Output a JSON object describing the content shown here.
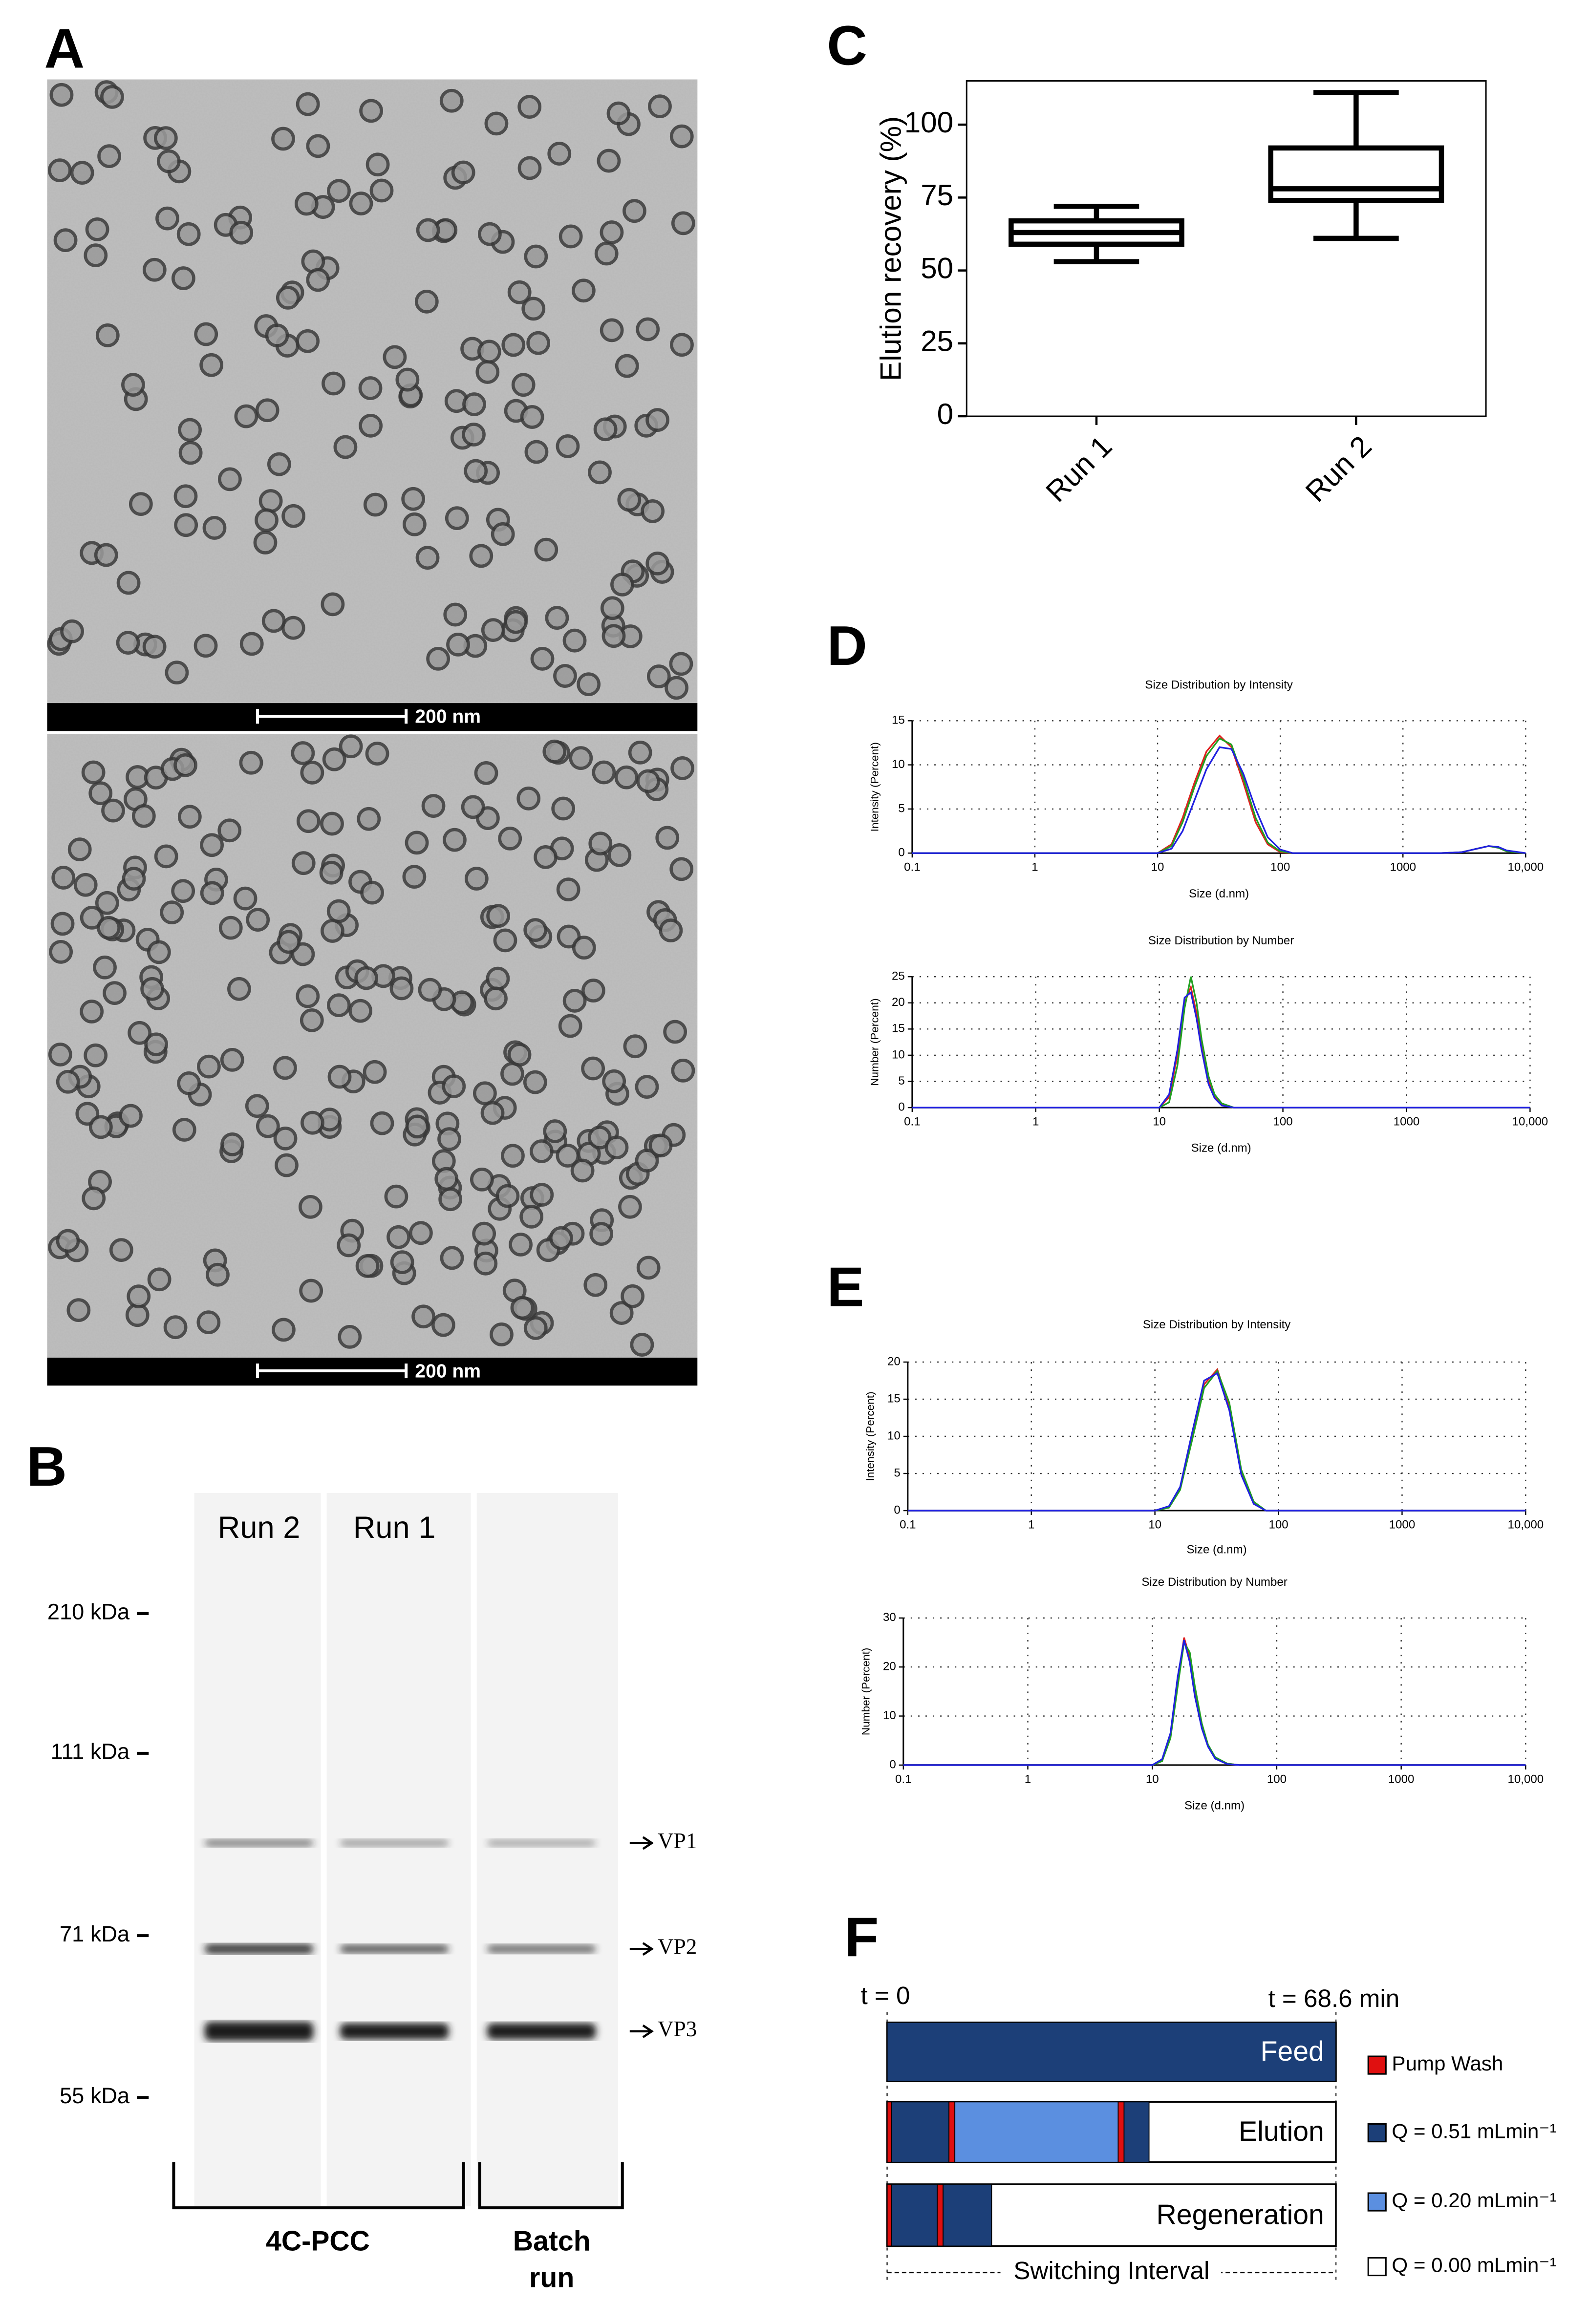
{
  "panel_labels": [
    "A",
    "B",
    "C",
    "D",
    "E",
    "F"
  ],
  "micrographs": [
    {
      "scale_bar": "200 nm"
    },
    {
      "scale_bar": "200 nm"
    }
  ],
  "gel": {
    "lanes": [
      "Run 2",
      "Run 1"
    ],
    "markers": [
      "210 kDa",
      "111 kDa",
      "71 kDa",
      "55 kDa"
    ],
    "bands": [
      "VP1",
      "VP2",
      "VP3"
    ],
    "groups": [
      "4C-PCC",
      "Batch run"
    ]
  },
  "chart_data": [
    {
      "type": "box",
      "ylabel": "Elution recovery (%)",
      "categories": [
        "Run 1",
        "Run 2"
      ],
      "boxes": [
        {
          "min": 53,
          "q1": 59,
          "median": 63,
          "q3": 67,
          "max": 72
        },
        {
          "min": 61,
          "q1": 74,
          "median": 78,
          "q3": 92,
          "max": 111
        }
      ],
      "ylim": [
        0,
        115
      ],
      "yticks": [
        0,
        25,
        50,
        75,
        100
      ],
      "color": "#000000"
    },
    {
      "type": "line",
      "title": "Size Distribution by Intensity",
      "xlabel": "Size (d.nm)",
      "ylabel": "Intensity (Percent)",
      "log_x": true,
      "grid": true,
      "xlim": [
        0.1,
        10000
      ],
      "xticks": [
        0.1,
        1,
        10,
        100,
        1000,
        {
          "value": 10000,
          "label": "10,000"
        }
      ],
      "ylim": [
        0,
        15
      ],
      "yticks": [
        0,
        5,
        10,
        15
      ],
      "x": [
        0.1,
        10,
        13,
        16,
        20,
        25,
        32,
        40,
        50,
        63,
        79,
        100,
        126,
        2000,
        3000,
        4000,
        5000,
        6000,
        7000,
        10000
      ],
      "series": [
        {
          "color": "#e02020",
          "values": [
            0,
            0,
            1,
            4,
            8,
            11.5,
            13.3,
            12,
            8,
            3.5,
            1,
            0.1,
            0,
            0,
            0.1,
            0.5,
            0.8,
            0.6,
            0.2,
            0
          ]
        },
        {
          "color": "#20a020",
          "values": [
            0,
            0,
            0.8,
            3.5,
            7.5,
            11,
            13,
            12.3,
            8.5,
            4,
            1.2,
            0.2,
            0,
            0,
            0.1,
            0.5,
            0.8,
            0.6,
            0.2,
            0
          ]
        },
        {
          "color": "#2020e0",
          "values": [
            0,
            0,
            0.5,
            2.5,
            6,
            9.5,
            12,
            11.8,
            9,
            5,
            1.8,
            0.4,
            0,
            0,
            0.1,
            0.5,
            0.8,
            0.7,
            0.3,
            0
          ]
        }
      ]
    },
    {
      "type": "line",
      "title": "Size Distribution by Number",
      "xlabel": "Size (d.nm)",
      "ylabel": "Number (Percent)",
      "log_x": true,
      "grid": true,
      "xlim": [
        0.1,
        10000
      ],
      "xticks": [
        0.1,
        1,
        10,
        100,
        1000,
        {
          "value": 10000,
          "label": "10,000"
        }
      ],
      "ylim": [
        0,
        25
      ],
      "yticks": [
        0,
        5,
        10,
        15,
        20,
        25
      ],
      "x": [
        0.1,
        10,
        12,
        14,
        16,
        18,
        20,
        22,
        25,
        28,
        32,
        40,
        50,
        10000
      ],
      "series": [
        {
          "color": "#e02020",
          "values": [
            0,
            0,
            2,
            10,
            20,
            23,
            18,
            12,
            5,
            2,
            0.5,
            0,
            0,
            0
          ]
        },
        {
          "color": "#20a020",
          "values": [
            0,
            0,
            1,
            8,
            19,
            25,
            20,
            13,
            6,
            2.5,
            0.8,
            0,
            0,
            0
          ]
        },
        {
          "color": "#2020e0",
          "values": [
            0,
            0,
            2.5,
            11,
            21,
            22,
            17,
            11,
            4.5,
            1.8,
            0.4,
            0,
            0,
            0
          ]
        }
      ]
    },
    {
      "type": "line",
      "title": "Size Distribution by Intensity",
      "xlabel": "Size (d.nm)",
      "ylabel": "Intensity (Percent)",
      "log_x": true,
      "grid": true,
      "xlim": [
        0.1,
        10000
      ],
      "xticks": [
        0.1,
        1,
        10,
        100,
        1000,
        {
          "value": 10000,
          "label": "10,000"
        }
      ],
      "ylim": [
        0,
        20
      ],
      "yticks": [
        0,
        5,
        10,
        15,
        20
      ],
      "x": [
        0.1,
        10,
        13,
        16,
        20,
        25,
        32,
        40,
        50,
        63,
        79,
        10000
      ],
      "series": [
        {
          "color": "#e02020",
          "values": [
            0,
            0,
            0.5,
            3,
            10,
            17,
            19,
            14,
            5,
            1,
            0,
            0
          ]
        },
        {
          "color": "#20a020",
          "values": [
            0,
            0,
            0.4,
            2.8,
            9.5,
            16.5,
            18.8,
            14.5,
            5.5,
            1.2,
            0,
            0
          ]
        },
        {
          "color": "#2020e0",
          "values": [
            0,
            0,
            0.6,
            3.2,
            10.5,
            17.5,
            18.5,
            13.5,
            4.8,
            0.9,
            0,
            0
          ]
        }
      ]
    },
    {
      "type": "line",
      "title": "Size Distribution by Number",
      "xlabel": "Size (d.nm)",
      "ylabel": "Number (Percent)",
      "log_x": true,
      "grid": true,
      "xlim": [
        0.1,
        10000
      ],
      "xticks": [
        0.1,
        1,
        10,
        100,
        1000,
        {
          "value": 10000,
          "label": "10,000"
        }
      ],
      "ylim": [
        0,
        30
      ],
      "yticks": [
        0,
        10,
        20,
        30
      ],
      "x": [
        0.1,
        10,
        12,
        14,
        16,
        18,
        20,
        22,
        25,
        28,
        32,
        40,
        50,
        10000
      ],
      "series": [
        {
          "color": "#e02020",
          "values": [
            0,
            0,
            1,
            6,
            17,
            26,
            22,
            15,
            8,
            4,
            1.5,
            0.3,
            0,
            0
          ]
        },
        {
          "color": "#20a020",
          "values": [
            0,
            0,
            0.8,
            5.5,
            16,
            25,
            23,
            16,
            8.5,
            4.2,
            1.6,
            0.3,
            0,
            0
          ]
        },
        {
          "color": "#2020e0",
          "values": [
            0,
            0,
            1.2,
            6.5,
            18,
            25.5,
            21,
            14,
            7.5,
            3.8,
            1.3,
            0.2,
            0,
            0
          ]
        }
      ]
    }
  ],
  "schedule": {
    "start_label": "t = 0",
    "end_label": "t = 68.6 min",
    "rows": [
      {
        "label": "Feed"
      },
      {
        "label": "Elution"
      },
      {
        "label": "Regeneration"
      }
    ],
    "legend": [
      {
        "label": "Pump Wash",
        "color": "#e01010"
      },
      {
        "label": "Q = 0.51 mLmin⁻¹",
        "color": "#1c3f78"
      },
      {
        "label": "Q = 0.20 mLmin⁻¹",
        "color": "#5b8fe0"
      },
      {
        "label": "Q = 0.00 mLmin⁻¹",
        "color": "#ffffff"
      }
    ],
    "axis_label": "Switching Interval"
  }
}
